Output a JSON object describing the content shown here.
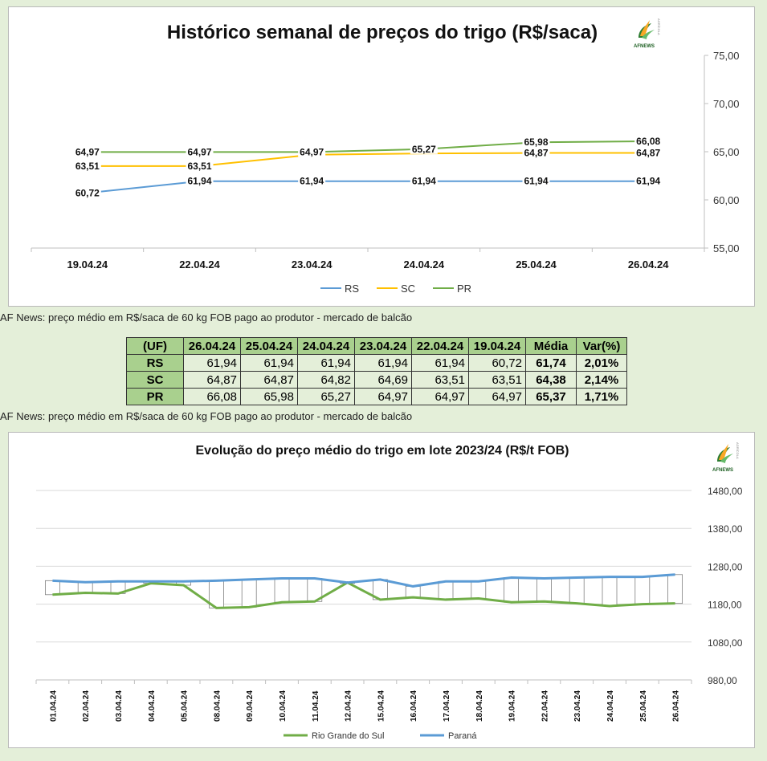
{
  "chart_data": [
    {
      "type": "line",
      "title": "Histórico semanal de preços do trigo (R$/saca)",
      "logo_text": "AFNEWS",
      "logo_side_text": "AGRÍCOLA",
      "categories": [
        "19.04.24",
        "22.04.24",
        "23.04.24",
        "24.04.24",
        "25.04.24",
        "26.04.24"
      ],
      "series": [
        {
          "name": "RS",
          "values": [
            60.72,
            61.94,
            61.94,
            61.94,
            61.94,
            61.94
          ],
          "labels": [
            "60,72",
            "61,94",
            "61,94",
            "61,94",
            "61,94",
            "61,94"
          ],
          "color": "#5b9bd5"
        },
        {
          "name": "SC",
          "values": [
            63.51,
            63.51,
            64.69,
            64.82,
            64.87,
            64.87
          ],
          "labels": [
            "63,51",
            "63,51",
            "",
            "",
            "64,87",
            "64,87"
          ],
          "color": "#ffc000"
        },
        {
          "name": "PR",
          "values": [
            64.97,
            64.97,
            64.97,
            65.27,
            65.98,
            66.08
          ],
          "labels": [
            "64,97",
            "64,97",
            "64,97",
            "65,27",
            "65,98",
            "66,08"
          ],
          "color": "#70ad47"
        }
      ],
      "y_ticks": [
        "55,00",
        "60,00",
        "65,00",
        "70,00",
        "75,00"
      ],
      "ylim": [
        55,
        75
      ],
      "y_axis_side": "right",
      "legend_position": "bottom",
      "grid": false
    },
    {
      "type": "line",
      "title": "Evolução do preço médio do trigo em lote 2023/24 (R$/t FOB)",
      "logo_text": "AFNEWS",
      "logo_side_text": "AGRÍCOLA",
      "categories": [
        "01.04.24",
        "02.04.24",
        "03.04.24",
        "04.04.24",
        "05.04.24",
        "08.04.24",
        "09.04.24",
        "10.04.24",
        "11.04.24",
        "12.04.24",
        "15.04.24",
        "16.04.24",
        "17.04.24",
        "18.04.24",
        "19.04.24",
        "22.04.24",
        "23.04.24",
        "24.04.24",
        "25.04.24",
        "26.04.24"
      ],
      "series": [
        {
          "name": "Rio Grande do Sul",
          "values": [
            1205,
            1210,
            1208,
            1235,
            1230,
            1170,
            1172,
            1185,
            1187,
            1237,
            1192,
            1198,
            1192,
            1195,
            1185,
            1187,
            1182,
            1175,
            1180,
            1182
          ],
          "color": "#70ad47"
        },
        {
          "name": "Paraná",
          "values": [
            1242,
            1238,
            1240,
            1240,
            1240,
            1242,
            1245,
            1248,
            1248,
            1237,
            1245,
            1227,
            1240,
            1240,
            1250,
            1248,
            1250,
            1252,
            1252,
            1258
          ],
          "color": "#5b9bd5"
        }
      ],
      "y_ticks": [
        "980,00",
        "1080,00",
        "1180,00",
        "1280,00",
        "1380,00",
        "1480,00"
      ],
      "ylim": [
        980,
        1480
      ],
      "y_axis_side": "right",
      "legend_position": "bottom",
      "grid": true
    }
  ],
  "notes": {
    "note1": "AF News: preço médio em R$/saca de 60 kg FOB pago ao produtor - mercado de balcão",
    "note2": "AF News: preço médio em R$/saca de 60 kg FOB pago ao produtor - mercado de balcão"
  },
  "table": {
    "headers": [
      "(UF)",
      "26.04.24",
      "25.04.24",
      "24.04.24",
      "23.04.24",
      "22.04.24",
      "19.04.24",
      "Média",
      "Var(%)"
    ],
    "rows": [
      {
        "uf": "RS",
        "values": [
          "61,94",
          "61,94",
          "61,94",
          "61,94",
          "61,94",
          "60,72"
        ],
        "media": "61,74",
        "var": "2,01%"
      },
      {
        "uf": "SC",
        "values": [
          "64,87",
          "64,87",
          "64,82",
          "64,69",
          "63,51",
          "63,51"
        ],
        "media": "64,38",
        "var": "2,14%"
      },
      {
        "uf": "PR",
        "values": [
          "66,08",
          "65,98",
          "65,27",
          "64,97",
          "64,97",
          "64,97"
        ],
        "media": "65,37",
        "var": "1,71%"
      }
    ]
  },
  "colors": {
    "background": "#e4efd9",
    "table_header": "#a9d08e"
  }
}
